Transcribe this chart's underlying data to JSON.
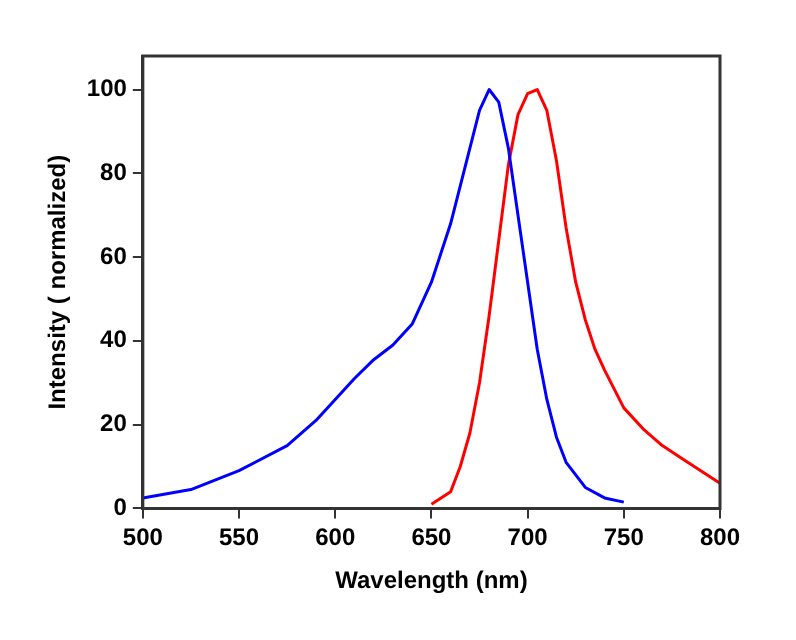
{
  "chart_data": {
    "type": "line",
    "xlabel": "Wavelength (nm)",
    "ylabel": "Intensity ( normalized)",
    "xlim": [
      500,
      800
    ],
    "xticks": [
      500,
      550,
      600,
      650,
      700,
      750,
      800
    ],
    "ylim": [
      0,
      108
    ],
    "yticks": [
      0,
      20,
      40,
      60,
      80,
      100
    ],
    "grid": false,
    "legend": false,
    "marker": "none",
    "line_style": "solid",
    "series": [
      {
        "color": "#0000ff",
        "x": [
          500,
          525,
          550,
          575,
          590,
          600,
          610,
          620,
          630,
          640,
          650,
          660,
          670,
          675,
          680,
          685,
          690,
          695,
          700,
          705,
          710,
          715,
          720,
          730,
          740,
          750
        ],
        "values": [
          2.5,
          4.5,
          9,
          15,
          21,
          26,
          31,
          35.5,
          39,
          44,
          54,
          68,
          86,
          95,
          100,
          97,
          86,
          70,
          54,
          38,
          26,
          17,
          11,
          5,
          2.5,
          1.5
        ]
      },
      {
        "color": "#ff0000",
        "x": [
          650,
          660,
          665,
          670,
          675,
          680,
          685,
          690,
          695,
          700,
          705,
          710,
          715,
          720,
          725,
          730,
          735,
          740,
          750,
          760,
          770,
          780,
          790,
          800
        ],
        "values": [
          1,
          4,
          10,
          18,
          30,
          46,
          64,
          82,
          94,
          99,
          100,
          95,
          83,
          67,
          54,
          45,
          38,
          33,
          24,
          19,
          15,
          12,
          9,
          6
        ]
      }
    ]
  }
}
